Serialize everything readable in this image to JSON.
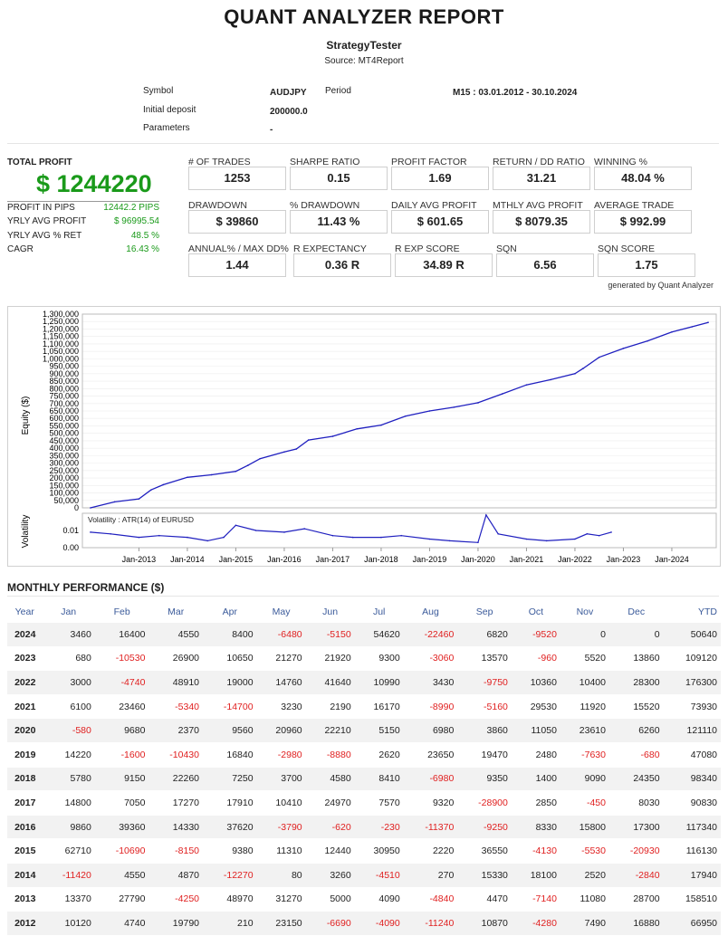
{
  "report": {
    "title": "QUANT ANALYZER REPORT",
    "subtitle": "StrategyTester",
    "source": "Source: MT4Report"
  },
  "info": {
    "symbol_label": "Symbol",
    "symbol_value": "AUDJPY",
    "period_label": "Period",
    "period_value": "M15 : 03.01.2012 - 30.10.2024",
    "deposit_label": "Initial deposit",
    "deposit_value": "200000.0",
    "params_label": "Parameters",
    "params_value": "-"
  },
  "summary": {
    "total_profit_label": "TOTAL PROFIT",
    "total_profit_value": "$ 1244220",
    "rows": [
      {
        "label": "PROFIT IN PIPS",
        "value": "12442.2 PIPS"
      },
      {
        "label": "YRLY AVG PROFIT",
        "value": "$ 96995.54"
      },
      {
        "label": "YRLY AVG % RET",
        "value": "48.5 %"
      },
      {
        "label": "CAGR",
        "value": "16.43 %"
      }
    ]
  },
  "metrics": [
    [
      {
        "label": "# OF TRADES",
        "value": "1253"
      },
      {
        "label": "SHARPE RATIO",
        "value": "0.15"
      },
      {
        "label": "PROFIT FACTOR",
        "value": "1.69"
      },
      {
        "label": "RETURN / DD RATIO",
        "value": "31.21"
      },
      {
        "label": "WINNING %",
        "value": "48.04 %"
      }
    ],
    [
      {
        "label": "DRAWDOWN",
        "value": "$ 39860"
      },
      {
        "label": "% DRAWDOWN",
        "value": "11.43 %"
      },
      {
        "label": "DAILY AVG PROFIT",
        "value": "$ 601.65"
      },
      {
        "label": "MTHLY AVG PROFIT",
        "value": "$ 8079.35"
      },
      {
        "label": "AVERAGE TRADE",
        "value": "$ 992.99"
      }
    ],
    [
      {
        "label": "ANNUAL% / MAX DD%",
        "value": "1.44"
      },
      {
        "label": "R EXPECTANCY",
        "value": "0.36 R"
      },
      {
        "label": "R EXP SCORE",
        "value": "34.89 R"
      },
      {
        "label": "SQN",
        "value": "6.56"
      },
      {
        "label": "SQN SCORE",
        "value": "1.75"
      }
    ]
  ],
  "generated_by": "generated by Quant Analyzer",
  "chart_data": [
    {
      "type": "line",
      "ylabel": "Equity ($)",
      "ylim": [
        0,
        1300000
      ],
      "yticks": [
        "0",
        "50,000",
        "100,000",
        "150,000",
        "200,000",
        "250,000",
        "300,000",
        "350,000",
        "400,000",
        "450,000",
        "500,000",
        "550,000",
        "600,000",
        "650,000",
        "700,000",
        "750,000",
        "800,000",
        "850,000",
        "900,000",
        "950,000",
        "1,000,000",
        "1,050,000",
        "1,100,000",
        "1,150,000",
        "1,200,000",
        "1,250,000",
        "1,300,000"
      ],
      "xticks": [
        "Jan-2013",
        "Jan-2014",
        "Jan-2015",
        "Jan-2016",
        "Jan-2017",
        "Jan-2018",
        "Jan-2019",
        "Jan-2020",
        "Jan-2021",
        "Jan-2022",
        "Jan-2023",
        "Jan-2024"
      ],
      "x": [
        "2012-01",
        "2012-07",
        "2013-01",
        "2013-04",
        "2013-07",
        "2014-01",
        "2014-07",
        "2015-01",
        "2015-04",
        "2015-07",
        "2016-01",
        "2016-04",
        "2016-07",
        "2017-01",
        "2017-07",
        "2018-01",
        "2018-07",
        "2019-01",
        "2019-07",
        "2020-01",
        "2020-07",
        "2021-01",
        "2021-07",
        "2022-01",
        "2022-03",
        "2022-07",
        "2023-01",
        "2023-07",
        "2024-01",
        "2024-06",
        "2024-10"
      ],
      "series": [
        {
          "values": [
            0,
            40000,
            60000,
            120000,
            155000,
            205000,
            222000,
            245000,
            285000,
            330000,
            375000,
            395000,
            455000,
            480000,
            530000,
            555000,
            615000,
            650000,
            675000,
            705000,
            765000,
            825000,
            860000,
            900000,
            935000,
            1010000,
            1070000,
            1120000,
            1180000,
            1215000,
            1244220
          ]
        }
      ]
    },
    {
      "type": "line",
      "ylabel": "Volatility",
      "legend": "Volatility : ATR(14) of EURUSD",
      "ylim": [
        0,
        0.02
      ],
      "yticks": [
        "0.00",
        "0.01"
      ],
      "x": [
        "2012-01",
        "2012-06",
        "2013-01",
        "2013-06",
        "2014-01",
        "2014-06",
        "2014-10",
        "2015-01",
        "2015-06",
        "2016-01",
        "2016-06",
        "2017-01",
        "2017-06",
        "2018-01",
        "2018-06",
        "2019-01",
        "2019-06",
        "2020-01",
        "2020-03",
        "2020-06",
        "2021-01",
        "2021-06",
        "2022-01",
        "2022-04",
        "2022-07",
        "2022-10"
      ],
      "series": [
        {
          "values": [
            0.009,
            0.008,
            0.006,
            0.007,
            0.006,
            0.004,
            0.006,
            0.013,
            0.01,
            0.009,
            0.011,
            0.007,
            0.006,
            0.006,
            0.007,
            0.005,
            0.004,
            0.003,
            0.019,
            0.008,
            0.005,
            0.004,
            0.005,
            0.008,
            0.007,
            0.009
          ]
        }
      ]
    }
  ],
  "monthly": {
    "title": "MONTHLY PERFORMANCE ($)",
    "headers": [
      "Year",
      "Jan",
      "Feb",
      "Mar",
      "Apr",
      "May",
      "Jun",
      "Jul",
      "Aug",
      "Sep",
      "Oct",
      "Nov",
      "Dec",
      "YTD"
    ],
    "rows": [
      [
        "2024",
        "3460",
        "16400",
        "4550",
        "8400",
        "-6480",
        "-5150",
        "54620",
        "-22460",
        "6820",
        "-9520",
        "0",
        "0",
        "50640"
      ],
      [
        "2023",
        "680",
        "-10530",
        "26900",
        "10650",
        "21270",
        "21920",
        "9300",
        "-3060",
        "13570",
        "-960",
        "5520",
        "13860",
        "109120"
      ],
      [
        "2022",
        "3000",
        "-4740",
        "48910",
        "19000",
        "14760",
        "41640",
        "10990",
        "3430",
        "-9750",
        "10360",
        "10400",
        "28300",
        "176300"
      ],
      [
        "2021",
        "6100",
        "23460",
        "-5340",
        "-14700",
        "3230",
        "2190",
        "16170",
        "-8990",
        "-5160",
        "29530",
        "11920",
        "15520",
        "73930"
      ],
      [
        "2020",
        "-580",
        "9680",
        "2370",
        "9560",
        "20960",
        "22210",
        "5150",
        "6980",
        "3860",
        "11050",
        "23610",
        "6260",
        "121110"
      ],
      [
        "2019",
        "14220",
        "-1600",
        "-10430",
        "16840",
        "-2980",
        "-8880",
        "2620",
        "23650",
        "19470",
        "2480",
        "-7630",
        "-680",
        "47080"
      ],
      [
        "2018",
        "5780",
        "9150",
        "22260",
        "7250",
        "3700",
        "4580",
        "8410",
        "-6980",
        "9350",
        "1400",
        "9090",
        "24350",
        "98340"
      ],
      [
        "2017",
        "14800",
        "7050",
        "17270",
        "17910",
        "10410",
        "24970",
        "7570",
        "9320",
        "-28900",
        "2850",
        "-450",
        "8030",
        "90830"
      ],
      [
        "2016",
        "9860",
        "39360",
        "14330",
        "37620",
        "-3790",
        "-620",
        "-230",
        "-11370",
        "-9250",
        "8330",
        "15800",
        "17300",
        "117340"
      ],
      [
        "2015",
        "62710",
        "-10690",
        "-8150",
        "9380",
        "11310",
        "12440",
        "30950",
        "2220",
        "36550",
        "-4130",
        "-5530",
        "-20930",
        "116130"
      ],
      [
        "2014",
        "-11420",
        "4550",
        "4870",
        "-12270",
        "80",
        "3260",
        "-4510",
        "270",
        "15330",
        "18100",
        "2520",
        "-2840",
        "17940"
      ],
      [
        "2013",
        "13370",
        "27790",
        "-4250",
        "48970",
        "31270",
        "5000",
        "4090",
        "-4840",
        "4470",
        "-7140",
        "11080",
        "28700",
        "158510"
      ],
      [
        "2012",
        "10120",
        "4740",
        "19790",
        "210",
        "23150",
        "-6690",
        "-4090",
        "-11240",
        "10870",
        "-4280",
        "7490",
        "16880",
        "66950"
      ]
    ]
  }
}
